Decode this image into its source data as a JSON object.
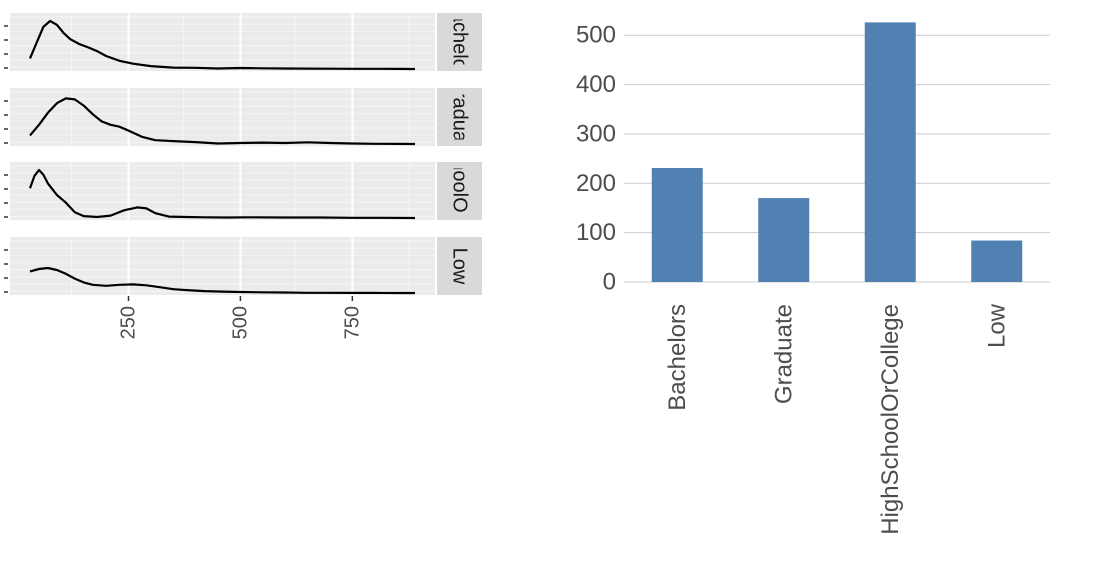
{
  "chart_data": [
    {
      "type": "line",
      "kind": "density-facets",
      "facet_labels": [
        "Bachelors",
        "Graduate",
        "HighSchoolOrCollege",
        "Low"
      ],
      "x_ticks": [
        250,
        500,
        750
      ],
      "xlim": [
        30,
        890
      ],
      "ylim": [
        0,
        1
      ],
      "grid": true,
      "series": [
        {
          "x": [
            30,
            45,
            60,
            75,
            90,
            105,
            120,
            140,
            160,
            180,
            200,
            230,
            260,
            300,
            350,
            400,
            450,
            500,
            550,
            600,
            650,
            700,
            750,
            800,
            850,
            890
          ],
          "y": [
            0.22,
            0.55,
            0.88,
            1.0,
            0.92,
            0.75,
            0.62,
            0.52,
            0.45,
            0.37,
            0.27,
            0.17,
            0.11,
            0.06,
            0.03,
            0.025,
            0.01,
            0.02,
            0.015,
            0.01,
            0.008,
            0.006,
            0.005,
            0.004,
            0.003,
            0.0
          ]
        },
        {
          "x": [
            30,
            50,
            70,
            90,
            110,
            130,
            150,
            170,
            190,
            210,
            230,
            250,
            280,
            310,
            350,
            400,
            450,
            500,
            550,
            600,
            650,
            700,
            750,
            800,
            850,
            890
          ],
          "y": [
            0.18,
            0.4,
            0.65,
            0.85,
            0.95,
            0.93,
            0.8,
            0.62,
            0.47,
            0.4,
            0.36,
            0.28,
            0.15,
            0.08,
            0.06,
            0.04,
            0.01,
            0.02,
            0.03,
            0.02,
            0.035,
            0.02,
            0.01,
            0.005,
            0.003,
            0.0
          ]
        },
        {
          "x": [
            30,
            40,
            50,
            60,
            70,
            80,
            90,
            110,
            130,
            150,
            180,
            210,
            240,
            270,
            290,
            310,
            340,
            380,
            420,
            470,
            520,
            600,
            680,
            750,
            820,
            890
          ],
          "y": [
            0.62,
            0.88,
            1.0,
            0.9,
            0.72,
            0.6,
            0.48,
            0.32,
            0.12,
            0.04,
            0.02,
            0.05,
            0.16,
            0.22,
            0.2,
            0.1,
            0.03,
            0.02,
            0.015,
            0.01,
            0.015,
            0.01,
            0.01,
            0.005,
            0.005,
            0.0
          ]
        },
        {
          "x": [
            30,
            50,
            70,
            90,
            110,
            130,
            150,
            170,
            200,
            230,
            260,
            290,
            320,
            350,
            380,
            420,
            460,
            500,
            550,
            600,
            650,
            700,
            750,
            800,
            850,
            890
          ],
          "y": [
            0.45,
            0.5,
            0.52,
            0.48,
            0.4,
            0.3,
            0.22,
            0.17,
            0.15,
            0.17,
            0.18,
            0.16,
            0.12,
            0.08,
            0.06,
            0.04,
            0.03,
            0.02,
            0.015,
            0.01,
            0.005,
            0.004,
            0.003,
            0.002,
            0.001,
            0.0
          ]
        }
      ]
    },
    {
      "type": "bar",
      "categories": [
        "Bachelors",
        "Graduate",
        "HighSchoolOrCollege",
        "Low"
      ],
      "values": [
        231,
        170,
        526,
        84
      ],
      "y_ticks": [
        0,
        100,
        200,
        300,
        400,
        500
      ],
      "ylim": [
        0,
        545
      ],
      "grid": true,
      "color": "#5081b2"
    }
  ],
  "colors": {
    "panel": "#ebebeb",
    "strip": "#d9d9d9",
    "grid_major": "#ffffff",
    "bar_grid": "#cccccc",
    "line": "#000000",
    "tick_text": "#4d4d4d"
  }
}
